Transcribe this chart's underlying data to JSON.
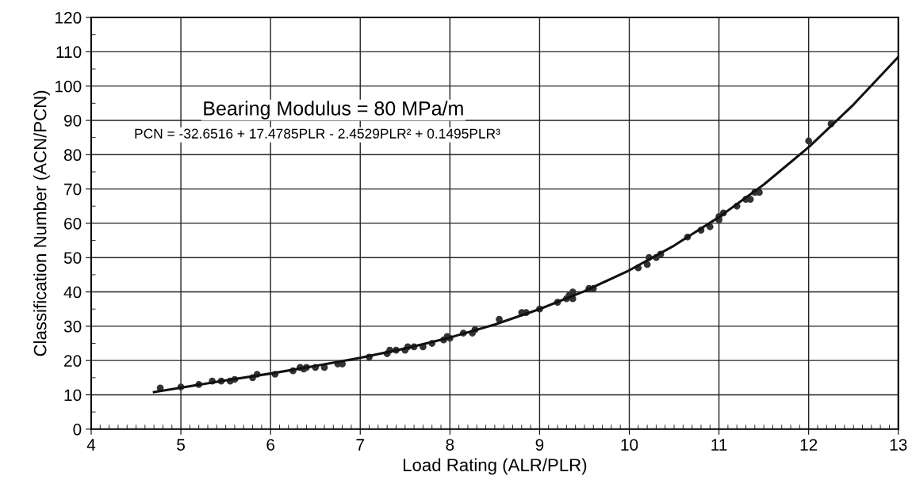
{
  "chart_data": {
    "type": "scatter",
    "xlabel": "Load Rating (ALR/PLR)",
    "ylabel": "Classification Number (ACN/PCN)",
    "annotations": [
      "Bearing Modulus = 80 MPa/m",
      "PCN = -32.6516 + 17.4785PLR - 2.4529PLR² + 0.1495PLR³"
    ],
    "xlim": [
      4,
      13
    ],
    "xticks": [
      4,
      5,
      6,
      7,
      8,
      9,
      10,
      11,
      12,
      13
    ],
    "ylim": [
      0,
      120
    ],
    "yticks": [
      0,
      10,
      20,
      30,
      40,
      50,
      60,
      70,
      80,
      90,
      100,
      110,
      120
    ],
    "grid": true,
    "marker": "circle",
    "series": [
      {
        "color": "#333333",
        "x": [
          4.77,
          5.0,
          5.2,
          5.35,
          5.45,
          5.55,
          5.6,
          5.8,
          5.85,
          6.05,
          6.25,
          6.33,
          6.37,
          6.4,
          6.5,
          6.6,
          6.75,
          6.8,
          7.1,
          7.3,
          7.33,
          7.4,
          7.5,
          7.53,
          7.6,
          7.7,
          7.8,
          7.93,
          7.97,
          8.0,
          8.15,
          8.25,
          8.28,
          8.55,
          8.8,
          8.85,
          9.0,
          9.2,
          9.3,
          9.33,
          9.37,
          9.37,
          9.55,
          9.6,
          10.1,
          10.2,
          10.22,
          10.3,
          10.35,
          10.65,
          10.8,
          10.9,
          11.0,
          11.0,
          11.05,
          11.2,
          11.3,
          11.35,
          11.4,
          11.45,
          12.0,
          12.25
        ],
        "values": [
          12,
          12.3,
          13,
          14,
          14,
          14,
          14.5,
          15,
          16,
          16,
          17,
          18,
          17.5,
          18,
          18,
          18,
          19,
          19,
          21,
          22,
          23,
          23,
          23,
          24,
          24,
          24,
          25,
          26,
          27,
          26.5,
          28,
          28,
          29,
          32,
          34,
          34,
          35,
          37,
          38,
          39,
          40,
          38,
          41,
          41,
          47,
          48,
          50,
          50,
          51,
          56,
          58,
          59,
          61,
          62,
          63,
          65,
          67,
          67,
          69,
          69,
          84,
          89
        ]
      },
      {
        "type": "line",
        "color": "#111111",
        "marker": "none",
        "line_style": "solid",
        "x": [
          4.7,
          5,
          5.5,
          6,
          6.5,
          7,
          7.5,
          8,
          8.5,
          9,
          9.5,
          10,
          10.5,
          11,
          11.5,
          12,
          12.5,
          13
        ],
        "values": [
          10.8,
          12.1,
          14.2,
          16.2,
          18.4,
          20.8,
          23.5,
          26.7,
          30.5,
          35.0,
          40.2,
          46.3,
          53.5,
          61.8,
          71.3,
          82.2,
          94.6,
          108.5
        ]
      }
    ]
  }
}
